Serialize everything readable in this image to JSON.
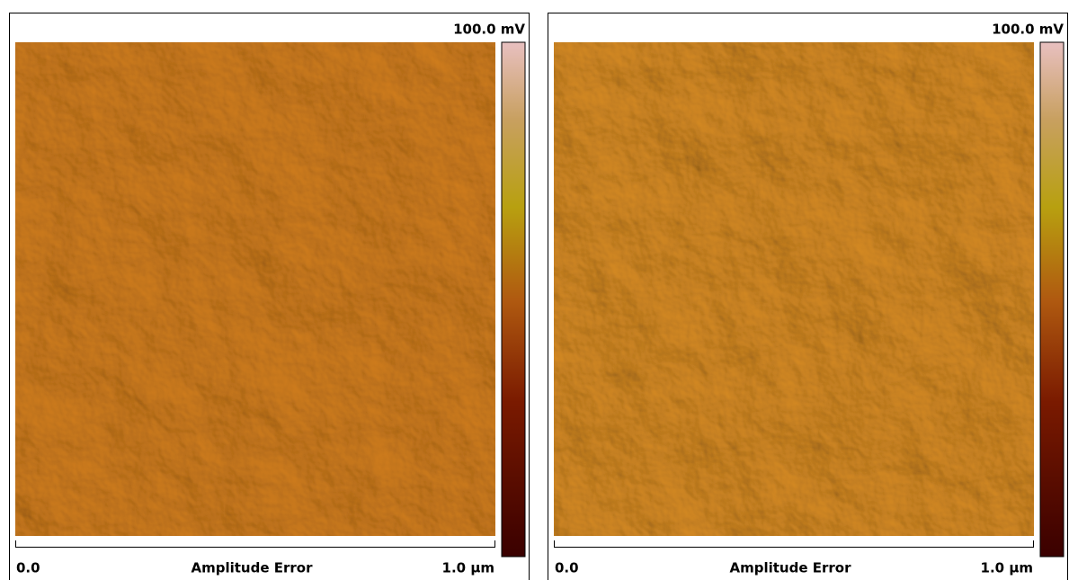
{
  "panels": [
    {
      "scale_max": "100.0 mV",
      "x_start": "0.0",
      "x_label": "Amplitude Error",
      "x_end": "1.0 µm"
    },
    {
      "scale_max": "100.0 mV",
      "x_start": "0.0",
      "x_label": "Amplitude Error",
      "x_end": "1.0 µm"
    }
  ]
}
